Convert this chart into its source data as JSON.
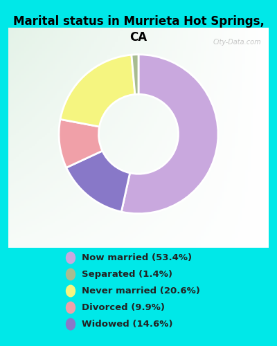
{
  "title": "Marital status in Murrieta Hot Springs,\nCA",
  "pie_values": [
    53.4,
    14.6,
    9.9,
    20.6,
    1.4
  ],
  "pie_colors": [
    "#c9a8de",
    "#8878c8",
    "#f0a0a8",
    "#f5f580",
    "#a8bc90"
  ],
  "pie_order_labels": [
    "Now married",
    "Widowed",
    "Divorced",
    "Never married",
    "Separated"
  ],
  "legend_labels": [
    "Now married (53.4%)",
    "Separated (1.4%)",
    "Never married (20.6%)",
    "Divorced (9.9%)",
    "Widowed (14.6%)"
  ],
  "legend_colors": [
    "#c9a8de",
    "#a8bc90",
    "#f5f580",
    "#f0a0a8",
    "#8878c8"
  ],
  "bg_outer": "#00e8e8",
  "bg_chart_color": "#d8eedc",
  "watermark": "City-Data.com",
  "figsize": [
    4.0,
    5.0
  ],
  "dpi": 100
}
